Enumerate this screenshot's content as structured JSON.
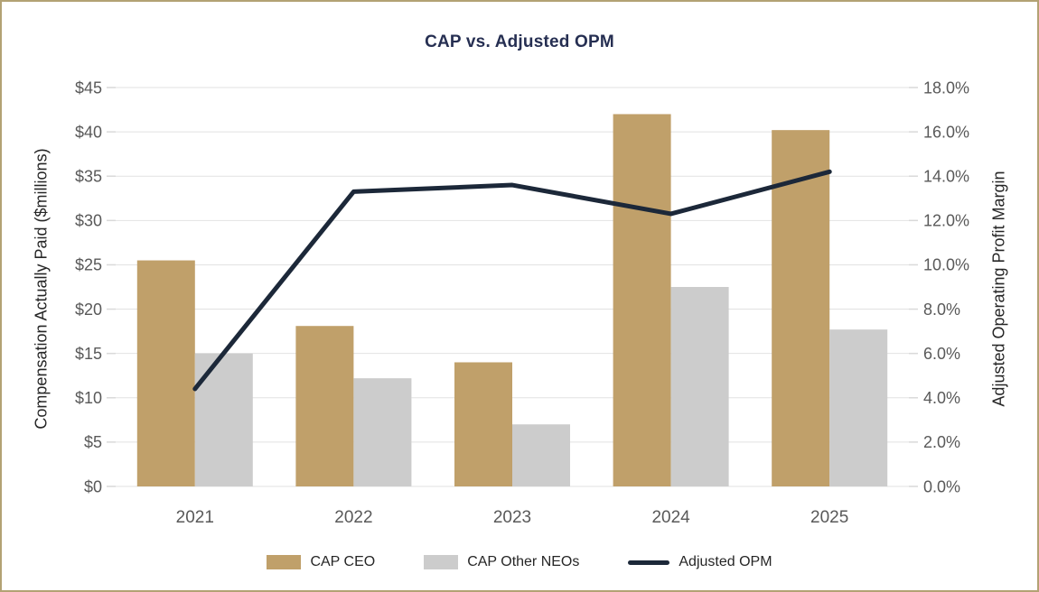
{
  "frame": {
    "border_color": "#B3A274",
    "background": "#FFFFFF"
  },
  "chart_data": {
    "type": "bar",
    "subtype": "grouped-bars-with-line-overlay",
    "title": "CAP vs. Adjusted OPM",
    "title_color": "#262F52",
    "categories": [
      "2021",
      "2022",
      "2023",
      "2024",
      "2025"
    ],
    "series": [
      {
        "name": "CAP CEO",
        "type": "bar",
        "axis": "left",
        "color": "#C0A06A",
        "values": [
          25.5,
          18.1,
          14.0,
          42.0,
          40.2
        ]
      },
      {
        "name": "CAP Other NEOs",
        "type": "bar",
        "axis": "left",
        "color": "#CCCCCC",
        "values": [
          15.0,
          12.2,
          7.0,
          22.5,
          17.7
        ]
      },
      {
        "name": "Adjusted OPM",
        "type": "line",
        "axis": "right",
        "color": "#1C2839",
        "values": [
          4.4,
          13.3,
          13.6,
          12.3,
          14.2
        ]
      }
    ],
    "left_axis": {
      "label": "Compensation Actually Paid ($millions)",
      "min": 0,
      "max": 45,
      "step": 5,
      "tick_labels": [
        "$0",
        "$5",
        "$10",
        "$15",
        "$20",
        "$25",
        "$30",
        "$35",
        "$40",
        "$45"
      ]
    },
    "right_axis": {
      "label": "Adjusted Operating Profit Margin",
      "min": 0,
      "max": 18,
      "step": 2,
      "tick_labels": [
        "0.0%",
        "2.0%",
        "4.0%",
        "6.0%",
        "8.0%",
        "10.0%",
        "12.0%",
        "14.0%",
        "16.0%",
        "18.0%"
      ]
    },
    "grid": true,
    "gridline_color": "#E2E2E2",
    "tick_color": "#D9D9D9",
    "legend_position": "bottom"
  }
}
